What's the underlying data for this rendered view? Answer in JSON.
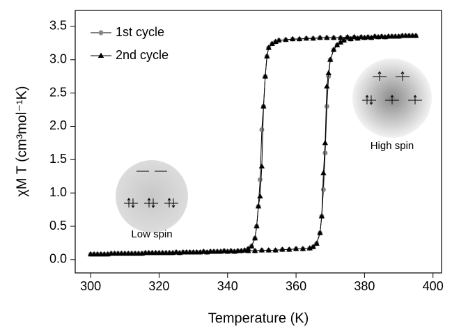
{
  "chart_data": {
    "type": "line",
    "x_label": "Temperature (K)",
    "y_label": "χM T (cm³mol⁻¹K)",
    "x": [
      300,
      302,
      304,
      306,
      308,
      310,
      312,
      314,
      316,
      318,
      320,
      322,
      324,
      326,
      328,
      330,
      332,
      334,
      336,
      338,
      340,
      342,
      344,
      346,
      348,
      350,
      352,
      354,
      356,
      358,
      360,
      362,
      364,
      365,
      366,
      367,
      367.5,
      368,
      368.5,
      369,
      369.5,
      370,
      371,
      372,
      373,
      374,
      376,
      378,
      380,
      382,
      384,
      386,
      388,
      390,
      392,
      394,
      395,
      393,
      391,
      389,
      387,
      385,
      383,
      381,
      379,
      377,
      375,
      373,
      371,
      369,
      367,
      365,
      363,
      361,
      359,
      357,
      355,
      354,
      353,
      352,
      351.5,
      351,
      350.5,
      350,
      349.5,
      349,
      348.5,
      348,
      347,
      346,
      345,
      343,
      341,
      339,
      337,
      335,
      333,
      331,
      329,
      327,
      325,
      323,
      321,
      319,
      317,
      315,
      313,
      311,
      309,
      307,
      305,
      303,
      301
    ],
    "series": [
      {
        "name": "1st cycle",
        "color": "#888888",
        "marker": "circle",
        "values": [
          0.08,
          0.08,
          0.08,
          0.09,
          0.09,
          0.09,
          0.09,
          0.09,
          0.1,
          0.1,
          0.1,
          0.1,
          0.1,
          0.1,
          0.11,
          0.11,
          0.11,
          0.11,
          0.12,
          0.12,
          0.12,
          0.12,
          0.13,
          0.13,
          0.13,
          0.14,
          0.14,
          0.14,
          0.15,
          0.15,
          0.16,
          0.16,
          0.17,
          0.19,
          0.24,
          0.4,
          0.65,
          1.05,
          1.6,
          2.3,
          2.75,
          3.0,
          3.15,
          3.22,
          3.26,
          3.29,
          3.31,
          3.32,
          3.33,
          3.33,
          3.34,
          3.34,
          3.35,
          3.35,
          3.36,
          3.36,
          3.36,
          3.36,
          3.36,
          3.35,
          3.35,
          3.35,
          3.35,
          3.34,
          3.34,
          3.34,
          3.34,
          3.33,
          3.33,
          3.33,
          3.33,
          3.32,
          3.32,
          3.31,
          3.31,
          3.3,
          3.29,
          3.27,
          3.24,
          3.18,
          3.05,
          2.75,
          2.3,
          1.95,
          1.2,
          0.8,
          0.5,
          0.32,
          0.2,
          0.16,
          0.14,
          0.13,
          0.13,
          0.13,
          0.12,
          0.12,
          0.12,
          0.11,
          0.11,
          0.11,
          0.11,
          0.1,
          0.1,
          0.1,
          0.1,
          0.09,
          0.09,
          0.09,
          0.09,
          0.09,
          0.08,
          0.08,
          0.08
        ]
      },
      {
        "name": "2nd cycle",
        "color": "#000000",
        "marker": "triangle",
        "values": [
          0.08,
          0.08,
          0.08,
          0.09,
          0.09,
          0.09,
          0.09,
          0.09,
          0.1,
          0.1,
          0.1,
          0.1,
          0.1,
          0.1,
          0.11,
          0.11,
          0.11,
          0.11,
          0.12,
          0.12,
          0.12,
          0.12,
          0.13,
          0.13,
          0.13,
          0.14,
          0.14,
          0.14,
          0.15,
          0.15,
          0.16,
          0.16,
          0.17,
          0.19,
          0.24,
          0.4,
          0.65,
          1.3,
          1.75,
          2.6,
          2.8,
          3.0,
          3.15,
          3.22,
          3.26,
          3.29,
          3.31,
          3.32,
          3.33,
          3.33,
          3.34,
          3.34,
          3.35,
          3.35,
          3.36,
          3.36,
          3.36,
          3.36,
          3.36,
          3.35,
          3.35,
          3.35,
          3.35,
          3.34,
          3.34,
          3.34,
          3.34,
          3.33,
          3.33,
          3.33,
          3.33,
          3.32,
          3.32,
          3.31,
          3.31,
          3.3,
          3.29,
          3.27,
          3.24,
          3.18,
          3.05,
          2.75,
          2.3,
          1.4,
          0.95,
          0.8,
          0.5,
          0.32,
          0.2,
          0.16,
          0.14,
          0.13,
          0.13,
          0.13,
          0.12,
          0.12,
          0.12,
          0.11,
          0.11,
          0.11,
          0.11,
          0.1,
          0.1,
          0.1,
          0.1,
          0.09,
          0.09,
          0.09,
          0.09,
          0.09,
          0.08,
          0.08,
          0.08
        ]
      }
    ],
    "xlim": [
      295.5,
      402.5
    ],
    "ylim": [
      -0.2,
      3.74
    ],
    "xticks": [
      300,
      320,
      340,
      360,
      380,
      400
    ],
    "yticks": [
      {
        "value": 0,
        "label": "0.0"
      },
      0.5,
      {
        "value": 1,
        "label": "1.0"
      },
      1.5,
      {
        "value": 2,
        "label": "2.0"
      },
      2.5,
      {
        "value": 3,
        "label": "3.0"
      },
      3.5
    ],
    "legend": "upper left",
    "annotations": [
      "Low spin",
      "High spin"
    ]
  }
}
